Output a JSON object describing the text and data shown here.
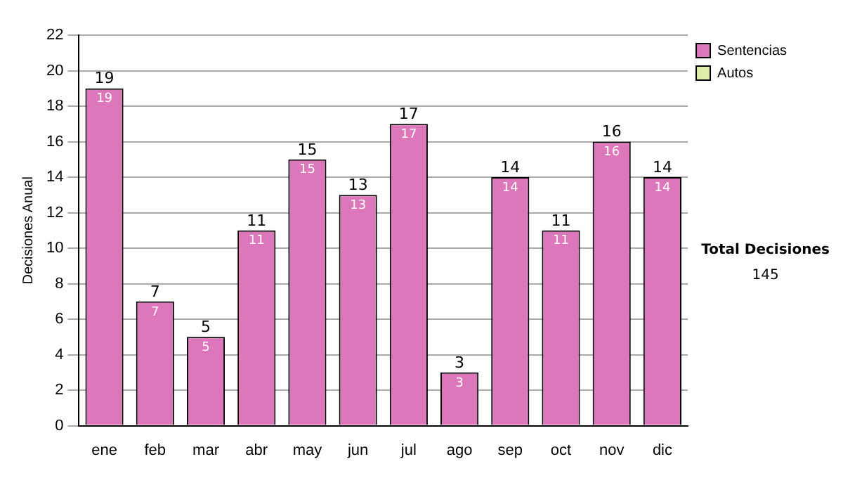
{
  "chart_data": {
    "type": "bar",
    "ylabel": "Decisiones Anual",
    "categories": [
      "ene",
      "feb",
      "mar",
      "abr",
      "may",
      "jun",
      "jul",
      "ago",
      "sep",
      "oct",
      "nov",
      "dic"
    ],
    "series": [
      {
        "name": "Sentencias",
        "color": "#dd77bb",
        "values": [
          19,
          7,
          5,
          11,
          15,
          13,
          17,
          3,
          14,
          11,
          16,
          14
        ],
        "value_labels": [
          "19",
          "7",
          "5",
          "11",
          "15",
          "13",
          "17",
          "3",
          "14",
          "11",
          "16",
          "14"
        ]
      },
      {
        "name": "Autos",
        "color": "#ddeeaa",
        "values": [
          0,
          0,
          0,
          0,
          0,
          0,
          0,
          0,
          0,
          0,
          0,
          0
        ],
        "value_labels": [
          null,
          null,
          null,
          null,
          null,
          null,
          null,
          null,
          null,
          null,
          null,
          null
        ]
      }
    ],
    "stacked": true,
    "totals": [
      "19",
      "7",
      "5",
      "11",
      "15",
      "13",
      "17",
      "3",
      "14",
      "11",
      "16",
      "14"
    ],
    "ylim": [
      0,
      22
    ],
    "yticks": [
      0,
      2,
      4,
      6,
      8,
      10,
      12,
      14,
      16,
      18,
      20,
      22
    ],
    "grid": "y",
    "legend": "right",
    "annotations": [
      "Total Decisiones",
      "145"
    ]
  }
}
